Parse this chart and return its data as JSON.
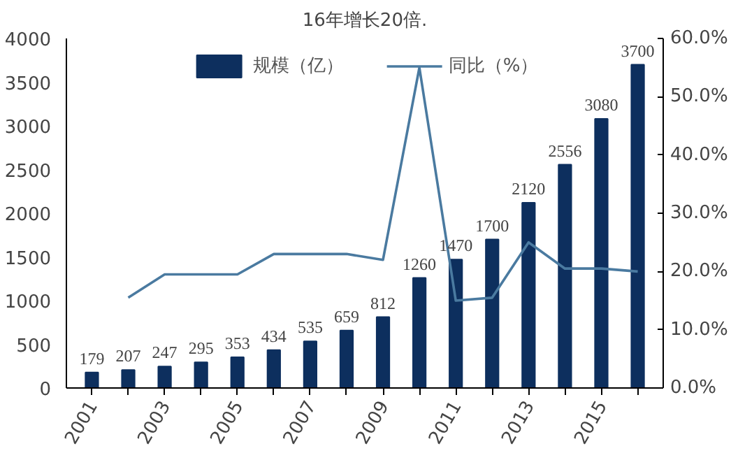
{
  "chart_data": {
    "type": "bar",
    "annotations": [
      "16年增长20倍."
    ],
    "categories": [
      "2001",
      null,
      "2003",
      null,
      "2005",
      null,
      "2007",
      null,
      "2009",
      null,
      "2011",
      null,
      "2013",
      null,
      "2015",
      null
    ],
    "series": [
      {
        "name": "规模（亿）",
        "color": "#0d2f5e",
        "values": [
          179,
          207,
          247,
          295,
          353,
          434,
          535,
          659,
          812,
          1260,
          1470,
          1700,
          2120,
          2556,
          3080,
          3700
        ],
        "value_labels": [
          "179",
          "207",
          "247",
          "295",
          "353",
          "434",
          "535",
          "659",
          "812",
          "1260",
          "1470",
          "1700",
          "2120",
          "2556",
          "3080",
          "3700"
        ]
      },
      {
        "name": "同比（%）",
        "type": "line",
        "axis": "y2",
        "color": "#4a7aa0",
        "values": [
          null,
          15.5,
          19.5,
          19.5,
          19.5,
          23,
          23,
          23,
          22,
          55,
          15,
          15.5,
          25,
          20.5,
          20.5,
          20
        ]
      }
    ],
    "ylim": [
      0,
      4000
    ],
    "yticks": [
      0,
      500,
      1000,
      1500,
      2000,
      2500,
      3000,
      3500,
      4000
    ],
    "y2lim": [
      0,
      60
    ],
    "y2ticks": [
      {
        "value": 0,
        "label": "0.0%"
      },
      {
        "value": 10,
        "label": "10.0%"
      },
      {
        "value": 20,
        "label": "20.0%"
      },
      {
        "value": 30,
        "label": "30.0%"
      },
      {
        "value": 40,
        "label": "40.0%"
      },
      {
        "value": 50,
        "label": "50.0%"
      },
      {
        "value": 60,
        "label": "60.0%"
      }
    ],
    "grid": false,
    "legend": "top"
  }
}
